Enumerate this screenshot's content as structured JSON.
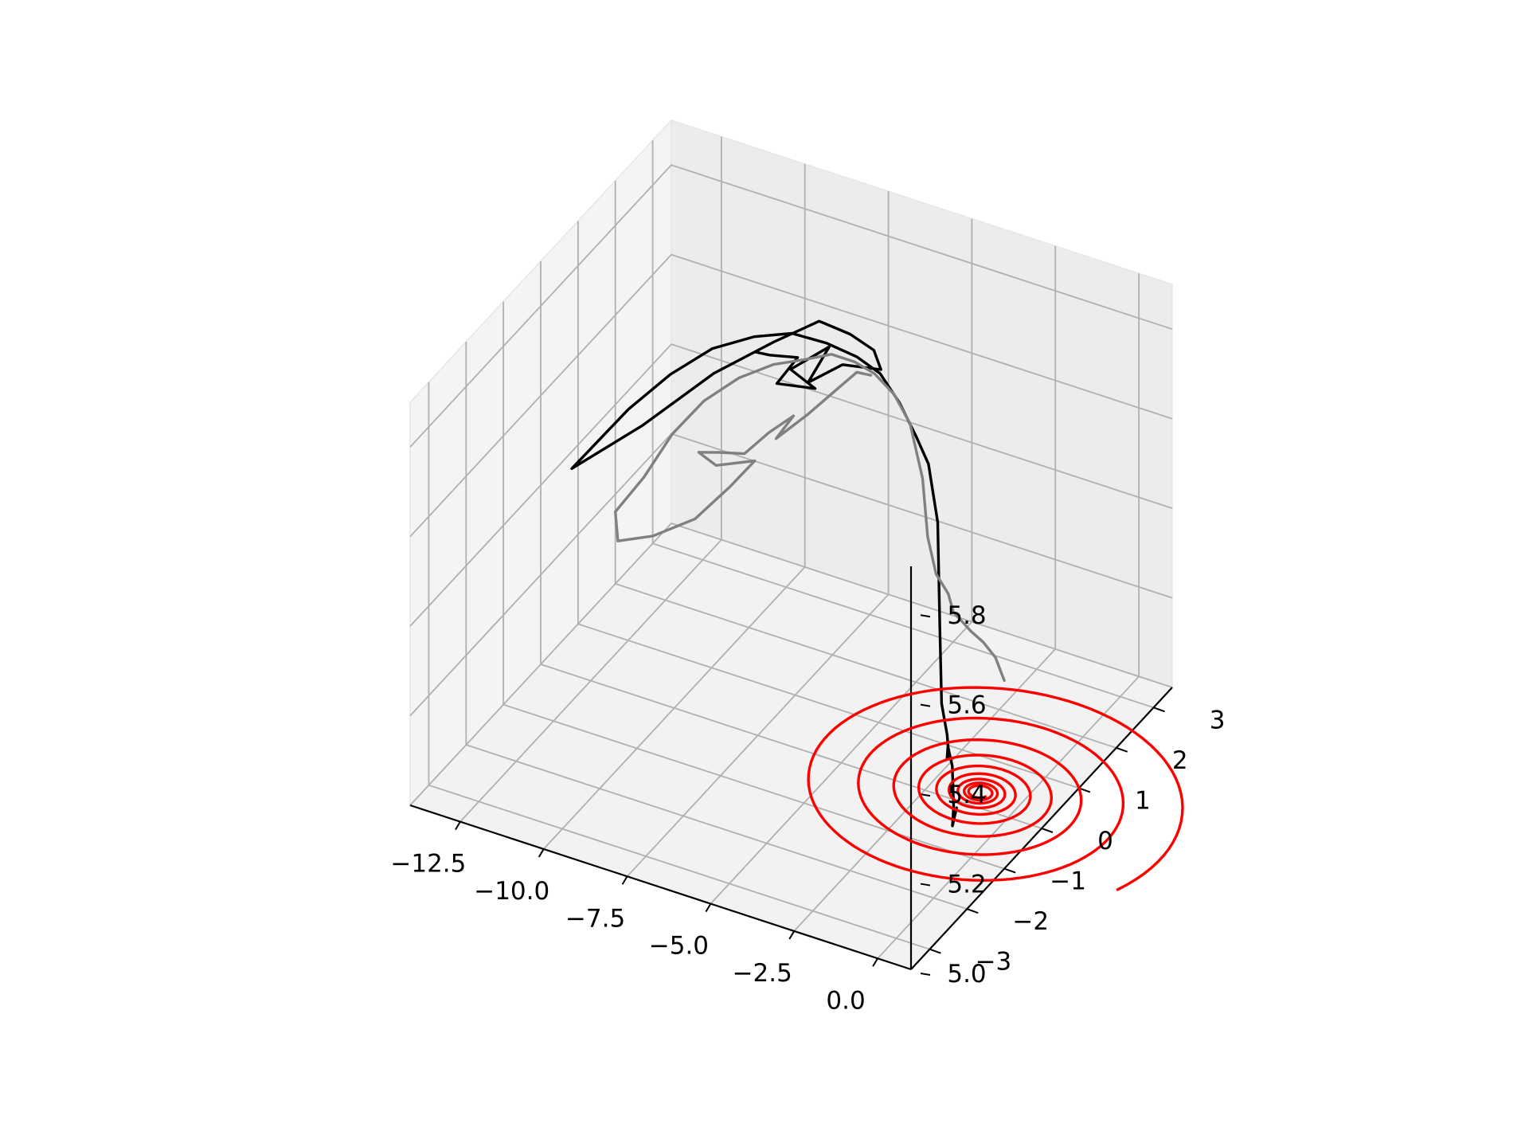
{
  "chart_data": {
    "type": "line3d",
    "title": "",
    "xlabel": "",
    "ylabel": "",
    "zlabel": "",
    "x_ticks": [
      "−12.5",
      "−10.0",
      "−7.5",
      "−5.0",
      "−2.5",
      "0.0"
    ],
    "y_ticks": [
      "−3",
      "−2",
      "−1",
      "0",
      "1",
      "2",
      "3"
    ],
    "z_ticks": [
      "5.0",
      "5.2",
      "5.4",
      "5.6",
      "5.8"
    ],
    "xlim": [
      -14.0,
      1.0
    ],
    "ylim": [
      -3.5,
      3.5
    ],
    "zlim": [
      5.0,
      5.9
    ],
    "grid": true,
    "series": [
      {
        "color": "#000000",
        "points": [
          [
            0.8,
            -2.1,
            5.23
          ],
          [
            0.9,
            -2.3,
            5.21
          ],
          [
            0.6,
            -2.0,
            5.22
          ],
          [
            0.0,
            -1.5,
            5.25
          ],
          [
            -0.8,
            -0.9,
            5.22
          ],
          [
            -1.5,
            -0.3,
            5.12
          ],
          [
            -2.0,
            0.2,
            5.07
          ],
          [
            -2.5,
            0.6,
            5.07
          ],
          [
            -3.0,
            0.9,
            5.1
          ],
          [
            -3.5,
            1.3,
            5.22
          ],
          [
            -3.9,
            1.6,
            5.42
          ],
          [
            -4.4,
            1.8,
            5.52
          ],
          [
            -5.0,
            2.0,
            5.55
          ],
          [
            -5.6,
            2.1,
            5.6
          ],
          [
            -6.3,
            2.2,
            5.64
          ],
          [
            -7.0,
            2.2,
            5.66
          ],
          [
            -7.8,
            2.1,
            5.68
          ],
          [
            -8.6,
            1.9,
            5.7
          ],
          [
            -9.4,
            1.6,
            5.7
          ],
          [
            -10.2,
            1.2,
            5.69
          ],
          [
            -10.9,
            0.7,
            5.66
          ],
          [
            -11.6,
            0.2,
            5.61
          ],
          [
            -12.1,
            -0.3,
            5.56
          ],
          [
            -12.4,
            -0.6,
            5.53
          ],
          [
            -11.5,
            0.5,
            5.55
          ],
          [
            -10.5,
            1.5,
            5.6
          ],
          [
            -9.6,
            2.3,
            5.62
          ],
          [
            -8.9,
            2.9,
            5.63
          ],
          [
            -8.2,
            3.1,
            5.6
          ],
          [
            -7.6,
            3.2,
            5.57
          ],
          [
            -7.5,
            3.3,
            5.52
          ],
          [
            -8.2,
            2.9,
            5.55
          ],
          [
            -8.9,
            2.6,
            5.52
          ],
          [
            -8.6,
            2.9,
            5.58
          ],
          [
            -9.2,
            2.4,
            5.56
          ],
          [
            -8.8,
            2.7,
            5.5
          ],
          [
            -9.5,
            2.3,
            5.53
          ],
          [
            -9.1,
            2.5,
            5.58
          ],
          [
            -9.6,
            2.2,
            5.6
          ],
          [
            -9.8,
            2.0,
            5.62
          ]
        ]
      },
      {
        "color": "#808080",
        "points": [
          [
            1.0,
            -1.0,
            5.42
          ],
          [
            0.4,
            -0.7,
            5.43
          ],
          [
            -0.3,
            -0.4,
            5.42
          ],
          [
            -1.0,
            -0.1,
            5.4
          ],
          [
            -1.6,
            0.2,
            5.38
          ],
          [
            -2.2,
            0.5,
            5.36
          ],
          [
            -2.8,
            0.9,
            5.35
          ],
          [
            -3.5,
            1.2,
            5.35
          ],
          [
            -4.2,
            1.6,
            5.38
          ],
          [
            -4.8,
            2.0,
            5.46
          ],
          [
            -5.4,
            2.2,
            5.55
          ],
          [
            -6.1,
            2.4,
            5.58
          ],
          [
            -6.8,
            2.5,
            5.6
          ],
          [
            -7.5,
            2.6,
            5.6
          ],
          [
            -8.2,
            2.6,
            5.6
          ],
          [
            -8.9,
            2.5,
            5.58
          ],
          [
            -9.6,
            2.3,
            5.57
          ],
          [
            -10.3,
            2.0,
            5.55
          ],
          [
            -10.9,
            1.6,
            5.52
          ],
          [
            -11.4,
            1.2,
            5.47
          ],
          [
            -11.8,
            0.8,
            5.4
          ],
          [
            -12.1,
            0.3,
            5.36
          ],
          [
            -11.8,
            0.1,
            5.32
          ],
          [
            -11.2,
            0.5,
            5.31
          ],
          [
            -10.5,
            1.0,
            5.32
          ],
          [
            -10.0,
            1.5,
            5.36
          ],
          [
            -9.6,
            1.8,
            5.4
          ],
          [
            -10.2,
            1.3,
            5.42
          ],
          [
            -10.5,
            1.1,
            5.46
          ],
          [
            -10.2,
            1.4,
            5.44
          ],
          [
            -9.8,
            1.7,
            5.42
          ],
          [
            -9.4,
            2.0,
            5.45
          ],
          [
            -9.0,
            2.3,
            5.47
          ],
          [
            -9.3,
            2.1,
            5.43
          ],
          [
            -8.8,
            2.5,
            5.46
          ],
          [
            -8.4,
            2.8,
            5.49
          ],
          [
            -8.0,
            3.1,
            5.52
          ],
          [
            -7.8,
            3.3,
            5.5
          ]
        ]
      },
      {
        "color": "#ff0000",
        "spiral": {
          "center": [
            -1.2,
            0.3
          ],
          "a0": 3.0,
          "decay": 0.055,
          "turns": 9,
          "phase": -0.4,
          "ratio": 0.85
        },
        "z": 5.0
      }
    ]
  }
}
